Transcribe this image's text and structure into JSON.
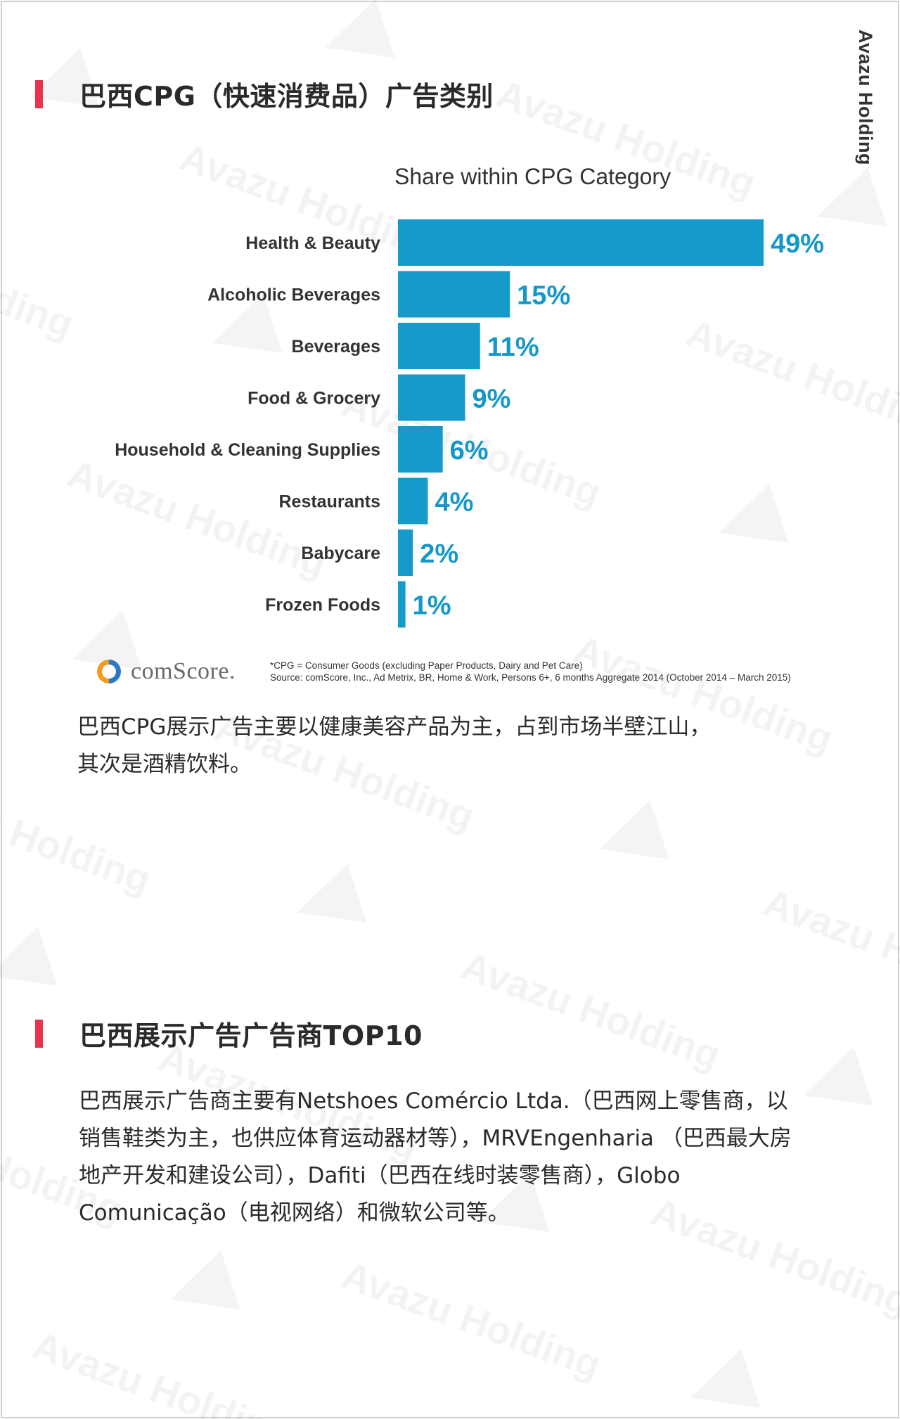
{
  "brand": {
    "vertical_label": "Avazu Holding",
    "watermark_text": "Avazu Holding"
  },
  "section1": {
    "heading": "巴西CPG（快速消费品）广告类别"
  },
  "chart_data": {
    "type": "bar",
    "orientation": "horizontal",
    "title": "Share within CPG Category",
    "xlabel": "",
    "ylabel": "",
    "value_suffix": "%",
    "xlim": [
      0,
      49
    ],
    "grid": false,
    "legend": "none",
    "bar_color": "#1699cb",
    "label_color": "#1497c9",
    "categories": [
      "Health & Beauty",
      "Alcoholic Beverages",
      "Beverages",
      "Food & Grocery",
      "Household & Cleaning Supplies",
      "Restaurants",
      "Babycare",
      "Frozen Foods"
    ],
    "values": [
      49,
      15,
      11,
      9,
      6,
      4,
      2,
      1
    ],
    "data_labels": [
      "49%",
      "15%",
      "11%",
      "9%",
      "6%",
      "4%",
      "2%",
      "1%"
    ]
  },
  "source": {
    "logo_text": "comScore.",
    "footnote_line1": "*CPG = Consumer Goods (excluding Paper Products, Dairy and Pet Care)",
    "footnote_line2": "Source: comScore, Inc., Ad Metrix, BR, Home & Work, Persons 6+, 6 months Aggregate 2014 (October 2014 – March 2015)",
    "logo_colors": {
      "orange": "#f39a1f",
      "blue": "#2b78c6"
    }
  },
  "paragraph1": {
    "line1": "巴西CPG展示广告主要以健康美容产品为主，占到市场半壁江山，",
    "line2": "其次是酒精饮料。"
  },
  "section2": {
    "heading": "巴西展示广告广告商TOP10"
  },
  "paragraph2": {
    "line1": "巴西展示广告商主要有Netshoes Comércio Ltda.（巴西网上零售商，以",
    "line2": "销售鞋类为主，也供应体育运动器材等），MRVEngenharia （巴西最大房",
    "line3": "地产开发和建设公司），Dafiti（巴西在线时装零售商），Globo",
    "line4": "Comunicação（电视网络）和微软公司等。"
  },
  "colors": {
    "accent_marker": "#e8334a",
    "text": "#2a2a2a",
    "frame": "#cfcfcf"
  }
}
